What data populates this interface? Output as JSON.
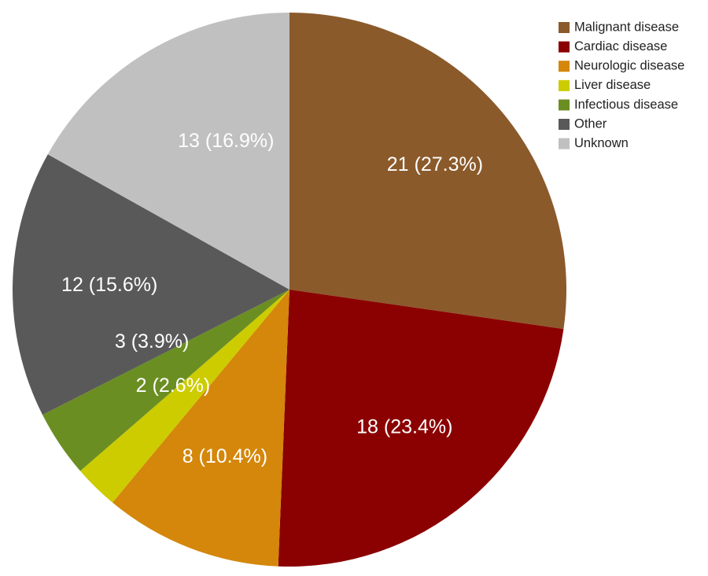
{
  "chart_data": {
    "type": "pie",
    "title": "",
    "legend_position": "top-right",
    "slices": [
      {
        "label": "Malignant disease",
        "value": 21,
        "data_label": "21 (27.3%)",
        "color": "#8B5A2B"
      },
      {
        "label": "Cardiac disease",
        "value": 18,
        "data_label": "18 (23.4%)",
        "color": "#8B0000"
      },
      {
        "label": "Neurologic disease",
        "value": 8,
        "data_label": "8 (10.4%)",
        "color": "#D4870A"
      },
      {
        "label": "Liver disease",
        "value": 2,
        "data_label": "2 (2.6%)",
        "color": "#CCCC00"
      },
      {
        "label": "Infectious disease",
        "value": 3,
        "data_label": "3 (3.9%)",
        "color": "#6B8E23"
      },
      {
        "label": "Other",
        "value": 12,
        "data_label": "12 (15.6%)",
        "color": "#595959"
      },
      {
        "label": "Unknown",
        "value": 13,
        "data_label": "13 (16.9%)",
        "color": "#C0C0C0"
      }
    ]
  }
}
